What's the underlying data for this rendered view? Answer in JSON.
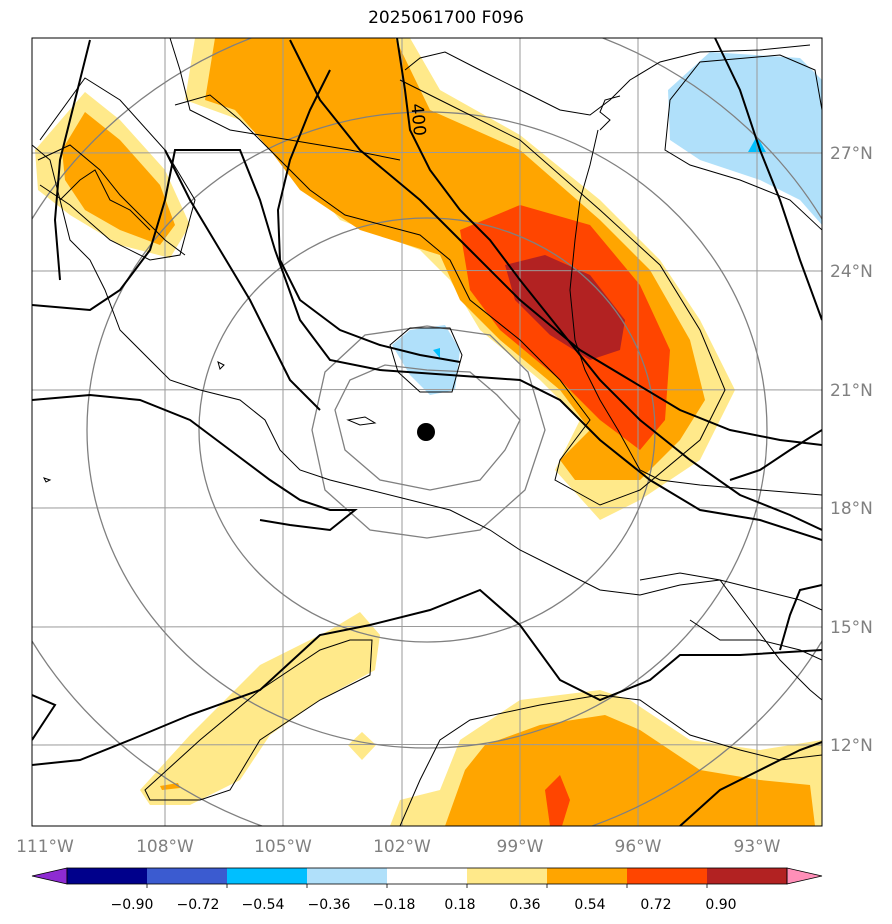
{
  "title": "2025061700 F096",
  "map": {
    "lon_labels": [
      "111°W",
      "108°W",
      "105°W",
      "102°W",
      "99°W",
      "96°W",
      "93°W"
    ],
    "lat_labels": [
      "27°N",
      "24°N",
      "21°N",
      "18°N",
      "15°N",
      "12°N"
    ],
    "contour_label": "400",
    "center_marker": "storm-center"
  },
  "colorbar": {
    "labels": [
      "−0.90",
      "−0.72",
      "−0.54",
      "−0.36",
      "−0.18",
      "0.18",
      "0.36",
      "0.54",
      "0.72",
      "0.90"
    ],
    "colors": [
      "#8e2bd2",
      "#00008b",
      "#3b5bd0",
      "#00bfff",
      "#b0e0fa",
      "#ffffff",
      "#ffe98a",
      "#ffa500",
      "#ff4500",
      "#b22222",
      "#ff8fb8"
    ],
    "extend": "both"
  }
}
